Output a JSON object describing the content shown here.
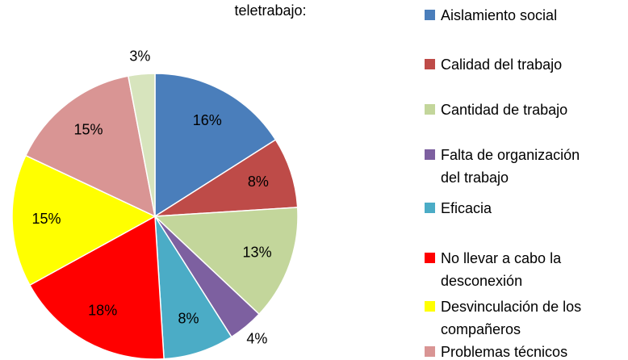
{
  "chart_data": {
    "type": "pie",
    "title": "teletrabajo:",
    "categories": [
      "Aislamiento social",
      "Calidad del trabajo",
      "Cantidad de trabajo",
      "Falta de organización del trabajo",
      "Eficacia",
      "No llevar a cabo la desconexión",
      "Desvinculación de los compañeros",
      "Problemas técnicos",
      null
    ],
    "values": [
      16,
      8,
      13,
      4,
      8,
      18,
      15,
      15,
      3
    ],
    "value_labels": [
      "16%",
      "8%",
      "13%",
      "4%",
      "8%",
      "18%",
      "15%",
      "15%",
      "3%"
    ],
    "colors": [
      "#4a7ebb",
      "#be4b48",
      "#c3d69b",
      "#7d60a0",
      "#4bacc6",
      "#ff0000",
      "#ffff00",
      "#d99594",
      "#d7e4bd"
    ]
  }
}
